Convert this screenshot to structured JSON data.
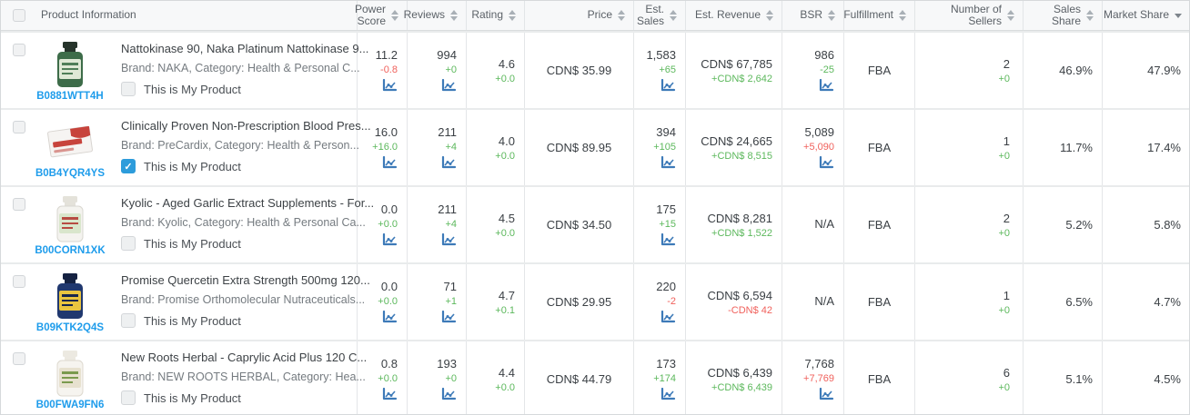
{
  "header": {
    "product_info_label": "Product Information",
    "columns": [
      {
        "label": "Power Score",
        "sort": "both"
      },
      {
        "label": "Reviews",
        "sort": "both"
      },
      {
        "label": "Rating",
        "sort": "both"
      },
      {
        "label": "Price",
        "sort": "both"
      },
      {
        "label": "Est. Sales",
        "sort": "both"
      },
      {
        "label": "Est. Revenue",
        "sort": "both"
      },
      {
        "label": "BSR",
        "sort": "both"
      },
      {
        "label": "Fulfillment",
        "sort": "both"
      },
      {
        "label": "Number of Sellers",
        "sort": "both"
      },
      {
        "label": "Sales Share",
        "sort": "both"
      },
      {
        "label": "Market Share",
        "sort": "desc"
      }
    ]
  },
  "colors": {
    "positive_change": "#5cb85c",
    "negative_change": "#f0615c",
    "asin_link": "#1e9ceb",
    "my_product_checked": "#2d9cdb",
    "chart_icon": "#3d7ab8"
  },
  "rows": [
    {
      "asin": "B0881WTT4H",
      "title": "Nattokinase 90, Naka Platinum Nattokinase 9...",
      "brand_line": "Brand: NAKA,  Category: Health & Personal C...",
      "thumb": "green-supplement-bottle",
      "my_product_label": "This is My Product",
      "my_product_checked": "unchecked",
      "power_score": {
        "value": "11.2",
        "change": "-0.8",
        "tone": "neg",
        "icon": "has-icon"
      },
      "reviews": {
        "value": "994",
        "change": "+0",
        "tone": "pos",
        "icon": "has-icon"
      },
      "rating": {
        "value": "4.6",
        "change": "+0.0",
        "tone": "pos"
      },
      "price": "CDN$ 35.99",
      "est_sales": {
        "value": "1,583",
        "change": "+65",
        "tone": "pos",
        "icon": "has-icon"
      },
      "est_revenue": {
        "value": "CDN$ 67,785",
        "change": "+CDN$ 2,642",
        "tone": "pos"
      },
      "bsr": {
        "value": "986",
        "change": "-25",
        "tone": "pos",
        "icon": "has-icon"
      },
      "fulfillment": "FBA",
      "sellers": {
        "value": "2",
        "change": "+0",
        "tone": "pos"
      },
      "sales_share": "46.9%",
      "market_share": "47.9%"
    },
    {
      "asin": "B0B4YQR4YS",
      "title": "Clinically Proven Non-Prescription Blood Pres...",
      "brand_line": "Brand: PreCardix,  Category: Health & Person...",
      "thumb": "red-white-precardix-box",
      "my_product_label": "This is My Product",
      "my_product_checked": "checked",
      "power_score": {
        "value": "16.0",
        "change": "+16.0",
        "tone": "pos",
        "icon": "has-icon"
      },
      "reviews": {
        "value": "211",
        "change": "+4",
        "tone": "pos",
        "icon": "has-icon"
      },
      "rating": {
        "value": "4.0",
        "change": "+0.0",
        "tone": "pos"
      },
      "price": "CDN$ 89.95",
      "est_sales": {
        "value": "394",
        "change": "+105",
        "tone": "pos",
        "icon": "has-icon"
      },
      "est_revenue": {
        "value": "CDN$ 24,665",
        "change": "+CDN$ 8,515",
        "tone": "pos"
      },
      "bsr": {
        "value": "5,089",
        "change": "+5,090",
        "tone": "neg",
        "icon": "has-icon"
      },
      "fulfillment": "FBA",
      "sellers": {
        "value": "1",
        "change": "+0",
        "tone": "pos"
      },
      "sales_share": "11.7%",
      "market_share": "17.4%"
    },
    {
      "asin": "B00CORN1XK",
      "title": "Kyolic - Aged Garlic Extract Supplements - For...",
      "brand_line": "Brand: Kyolic,  Category: Health & Personal Ca...",
      "thumb": "white-garlic-supplement-bottle",
      "my_product_label": "This is My Product",
      "my_product_checked": "unchecked",
      "power_score": {
        "value": "0.0",
        "change": "+0.0",
        "tone": "pos",
        "icon": "has-icon"
      },
      "reviews": {
        "value": "211",
        "change": "+4",
        "tone": "pos",
        "icon": "has-icon"
      },
      "rating": {
        "value": "4.5",
        "change": "+0.0",
        "tone": "pos"
      },
      "price": "CDN$ 34.50",
      "est_sales": {
        "value": "175",
        "change": "+15",
        "tone": "pos",
        "icon": "has-icon"
      },
      "est_revenue": {
        "value": "CDN$ 8,281",
        "change": "+CDN$ 1,522",
        "tone": "pos"
      },
      "bsr": {
        "value": "N/A",
        "change": "",
        "tone": "pos",
        "icon": "no-icon"
      },
      "fulfillment": "FBA",
      "sellers": {
        "value": "2",
        "change": "+0",
        "tone": "pos"
      },
      "sales_share": "5.2%",
      "market_share": "5.8%"
    },
    {
      "asin": "B09KTK2Q4S",
      "title": "Promise Quercetin Extra Strength 500mg 120...",
      "brand_line": "Brand: Promise Orthomolecular Nutraceuticals...",
      "thumb": "navy-quercetin-bottle",
      "my_product_label": "This is My Product",
      "my_product_checked": "unchecked",
      "power_score": {
        "value": "0.0",
        "change": "+0.0",
        "tone": "pos",
        "icon": "has-icon"
      },
      "reviews": {
        "value": "71",
        "change": "+1",
        "tone": "pos",
        "icon": "has-icon"
      },
      "rating": {
        "value": "4.7",
        "change": "+0.1",
        "tone": "pos"
      },
      "price": "CDN$ 29.95",
      "est_sales": {
        "value": "220",
        "change": "-2",
        "tone": "neg",
        "icon": "has-icon"
      },
      "est_revenue": {
        "value": "CDN$ 6,594",
        "change": "-CDN$ 42",
        "tone": "neg"
      },
      "bsr": {
        "value": "N/A",
        "change": "",
        "tone": "pos",
        "icon": "no-icon"
      },
      "fulfillment": "FBA",
      "sellers": {
        "value": "1",
        "change": "+0",
        "tone": "pos"
      },
      "sales_share": "6.5%",
      "market_share": "4.7%"
    },
    {
      "asin": "B00FWA9FN6",
      "title": "New Roots Herbal - Caprylic Acid Plus 120 C...",
      "brand_line": "Brand: NEW ROOTS HERBAL,  Category: Hea...",
      "thumb": "white-herbal-bottle",
      "my_product_label": "This is My Product",
      "my_product_checked": "unchecked",
      "power_score": {
        "value": "0.8",
        "change": "+0.0",
        "tone": "pos",
        "icon": "has-icon"
      },
      "reviews": {
        "value": "193",
        "change": "+0",
        "tone": "pos",
        "icon": "has-icon"
      },
      "rating": {
        "value": "4.4",
        "change": "+0.0",
        "tone": "pos"
      },
      "price": "CDN$ 44.79",
      "est_sales": {
        "value": "173",
        "change": "+174",
        "tone": "pos",
        "icon": "has-icon"
      },
      "est_revenue": {
        "value": "CDN$ 6,439",
        "change": "+CDN$ 6,439",
        "tone": "pos"
      },
      "bsr": {
        "value": "7,768",
        "change": "+7,769",
        "tone": "neg",
        "icon": "has-icon"
      },
      "fulfillment": "FBA",
      "sellers": {
        "value": "6",
        "change": "+0",
        "tone": "pos"
      },
      "sales_share": "5.1%",
      "market_share": "4.5%"
    }
  ]
}
